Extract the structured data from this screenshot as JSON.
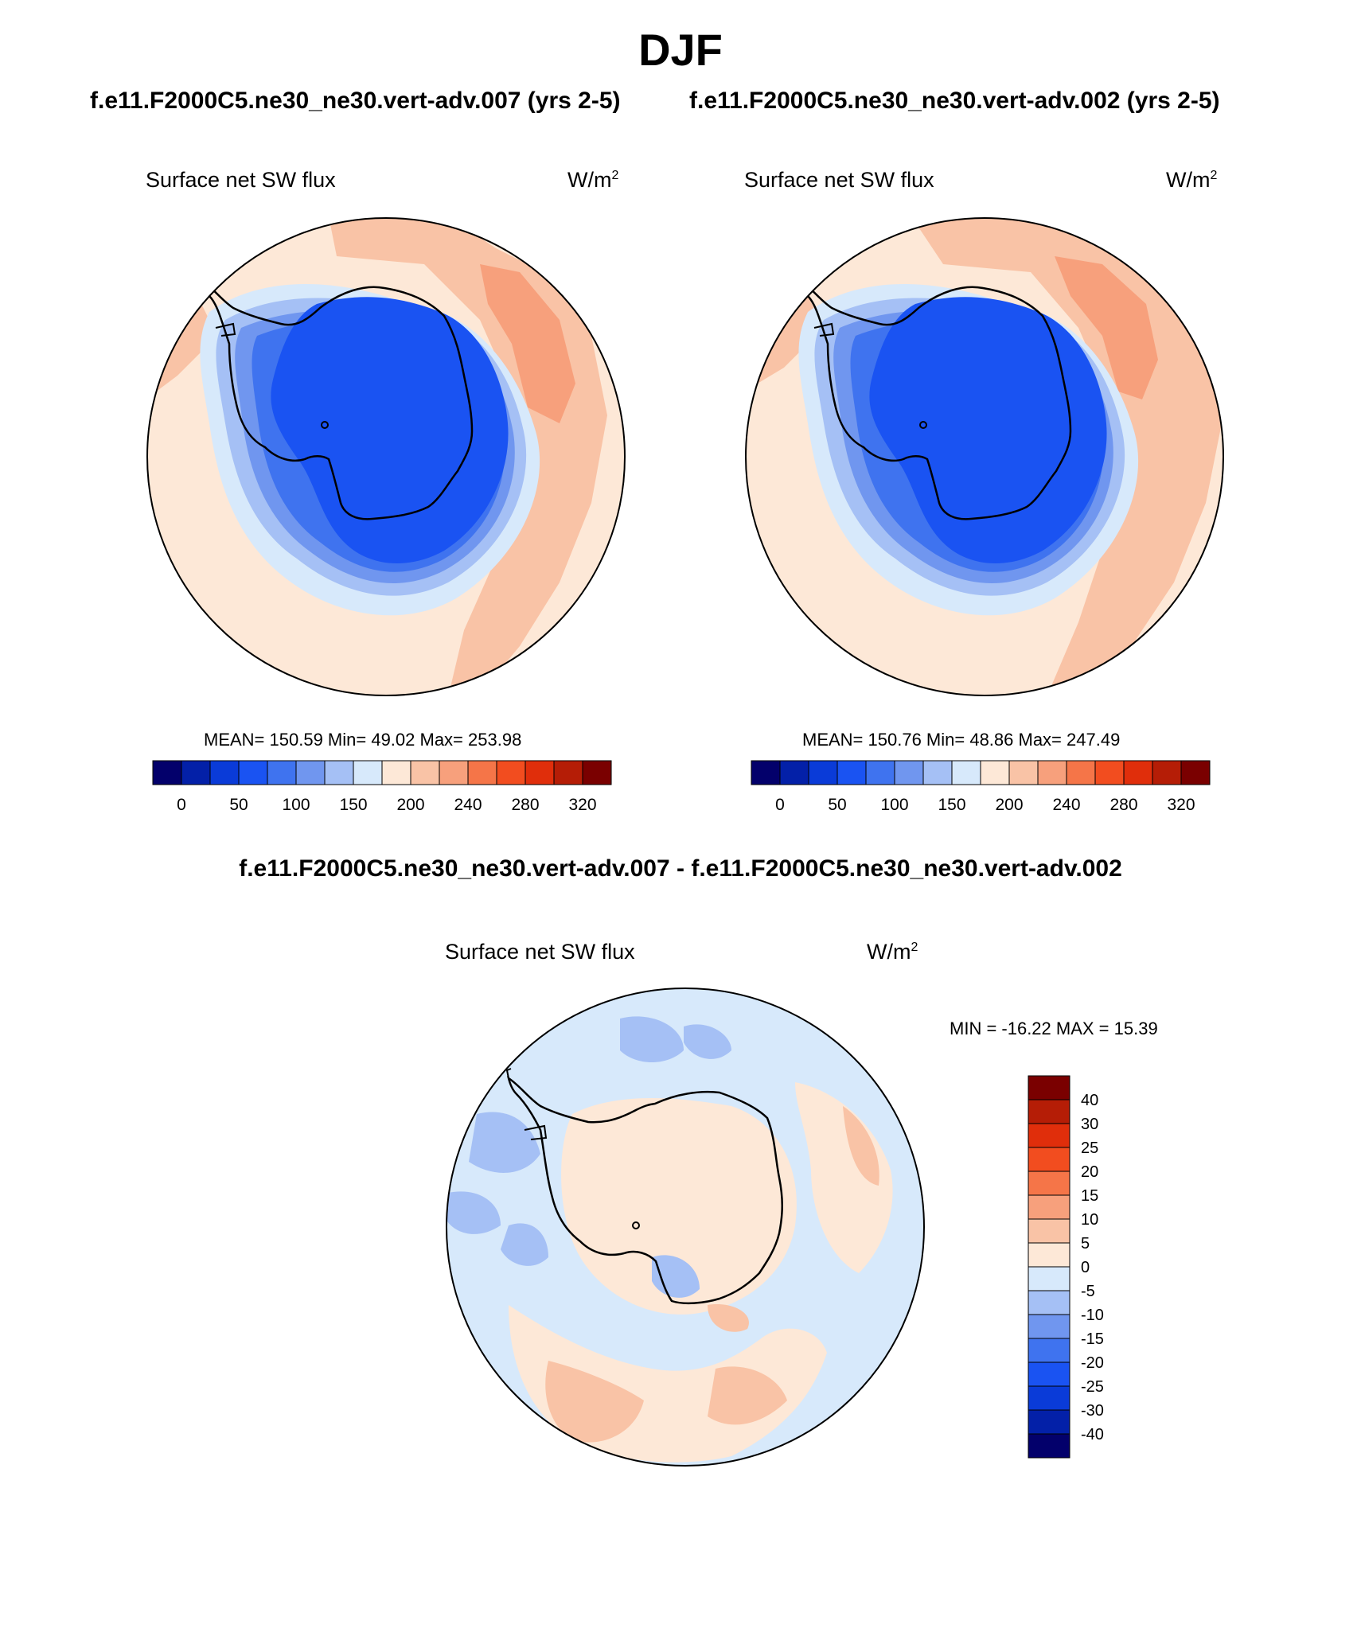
{
  "header": {
    "season": "DJF",
    "left_run": "f.e11.F2000C5.ne30_ne30.vert-adv.007 (yrs 2-5)",
    "right_run": "f.e11.F2000C5.ne30_ne30.vert-adv.002 (yrs 2-5)",
    "diff_title": "f.e11.F2000C5.ne30_ne30.vert-adv.007 - f.e11.F2000C5.ne30_ne30.vert-adv.002"
  },
  "panels": [
    {
      "field": "Surface net SW flux",
      "units": "W/m",
      "units_exp": "2",
      "stats": "MEAN= 150.59  Min=  49.02  Max= 253.98"
    },
    {
      "field": "Surface net SW flux",
      "units": "W/m",
      "units_exp": "2",
      "stats": "MEAN= 150.76  Min=  48.86  Max= 247.49"
    }
  ],
  "diff_panel": {
    "field": "Surface net SW flux",
    "units": "W/m",
    "units_exp": "2",
    "minmax": "MIN = -16.22 MAX =  15.39"
  },
  "colorbar_main": {
    "colors": [
      "#03006b",
      "#0320a8",
      "#0a3bd8",
      "#1a53f2",
      "#3f73ef",
      "#7096ef",
      "#a5c0f5",
      "#d7e9fb",
      "#fde8d7",
      "#f9c3a6",
      "#f7a07c",
      "#f57548",
      "#f24d1f",
      "#e02e0b",
      "#b51d06",
      "#7a0000"
    ],
    "labels": [
      "0",
      "50",
      "100",
      "150",
      "200",
      "240",
      "280",
      "320"
    ]
  },
  "colorbar_diff": {
    "colors": [
      "#7a0000",
      "#b51d06",
      "#e02e0b",
      "#f24d1f",
      "#f57548",
      "#f7a07c",
      "#f9c3a6",
      "#fde8d7",
      "#d7e9fb",
      "#a5c0f5",
      "#7096ef",
      "#3f73ef",
      "#1a53f2",
      "#0a3bd8",
      "#0320a8",
      "#03006b"
    ],
    "labels": [
      "40",
      "30",
      "25",
      "20",
      "15",
      "10",
      "5",
      "0",
      "-5",
      "-10",
      "-15",
      "-20",
      "-25",
      "-30",
      "-40"
    ]
  }
}
